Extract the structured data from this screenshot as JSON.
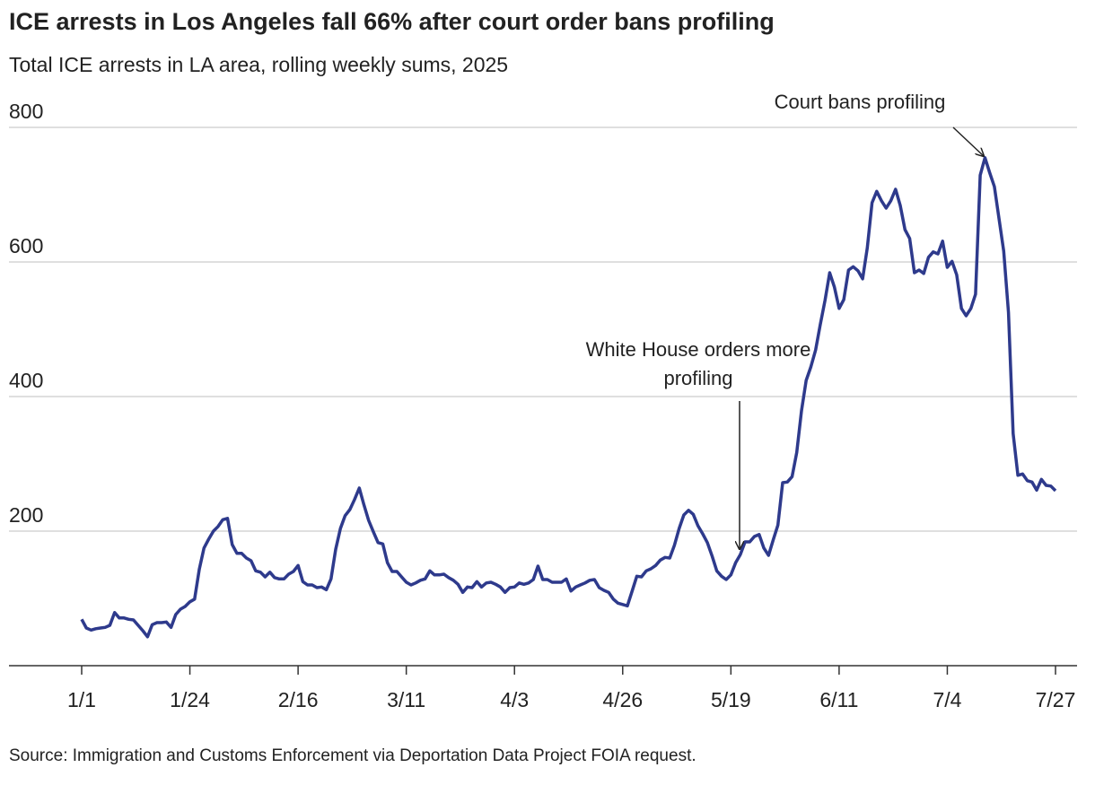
{
  "chart_data": {
    "type": "line",
    "title": "ICE arrests in Los Angeles fall 66% after court order bans profiling",
    "subtitle": "Total ICE arrests in LA area, rolling weekly sums, 2025",
    "source": "Source: Immigration and Customs Enforcement via Deportation Data Project FOIA request.",
    "annotations": [
      {
        "lines": [
          "Court bans profiling"
        ]
      },
      {
        "lines": [
          "White House orders more",
          "profiling"
        ]
      }
    ],
    "color": "#2e3a8c",
    "ylim": [
      0,
      800
    ],
    "yticks": [
      200,
      400,
      600,
      800
    ],
    "grid": true,
    "xticks": [
      "1/1",
      "1/24",
      "2/16",
      "3/11",
      "4/3",
      "4/26",
      "5/19",
      "6/11",
      "7/4",
      "7/27"
    ],
    "x": [
      "1/1",
      "1/2",
      "1/3",
      "1/4",
      "1/5",
      "1/6",
      "1/7",
      "1/8",
      "1/9",
      "1/10",
      "1/11",
      "1/12",
      "1/13",
      "1/14",
      "1/15",
      "1/16",
      "1/17",
      "1/18",
      "1/19",
      "1/20",
      "1/21",
      "1/22",
      "1/23",
      "1/24",
      "1/25",
      "1/26",
      "1/27",
      "1/28",
      "1/29",
      "1/30",
      "1/31",
      "2/1",
      "2/2",
      "2/3",
      "2/4",
      "2/5",
      "2/6",
      "2/7",
      "2/8",
      "2/9",
      "2/10",
      "2/11",
      "2/12",
      "2/13",
      "2/14",
      "2/15",
      "2/16",
      "2/17",
      "2/18",
      "2/19",
      "2/20",
      "2/21",
      "2/22",
      "2/23",
      "2/24",
      "2/25",
      "2/26",
      "2/27",
      "2/28",
      "3/1",
      "3/2",
      "3/3",
      "3/4",
      "3/5",
      "3/6",
      "3/7",
      "3/8",
      "3/9",
      "3/10",
      "3/11",
      "3/12",
      "3/13",
      "3/14",
      "3/15",
      "3/16",
      "3/17",
      "3/18",
      "3/19",
      "3/20",
      "3/21",
      "3/22",
      "3/23",
      "3/24",
      "3/25",
      "3/26",
      "3/27",
      "3/28",
      "3/29",
      "3/30",
      "3/31",
      "4/1",
      "4/2",
      "4/3",
      "4/4",
      "4/5",
      "4/6",
      "4/7",
      "4/8",
      "4/9",
      "4/10",
      "4/11",
      "4/12",
      "4/13",
      "4/14",
      "4/15",
      "4/16",
      "4/17",
      "4/18",
      "4/19",
      "4/20",
      "4/21",
      "4/22",
      "4/23",
      "4/24",
      "4/25",
      "4/26",
      "4/27",
      "4/28",
      "4/29",
      "4/30",
      "5/1",
      "5/2",
      "5/3",
      "5/4",
      "5/5",
      "5/6",
      "5/7",
      "5/8",
      "5/9",
      "5/10",
      "5/11",
      "5/12",
      "5/13",
      "5/14",
      "5/15",
      "5/16",
      "5/17",
      "5/18",
      "5/19",
      "5/20",
      "5/21",
      "5/22",
      "5/23",
      "5/24",
      "5/25",
      "5/26",
      "5/27",
      "5/28",
      "5/29",
      "5/30",
      "5/31",
      "6/1",
      "6/2",
      "6/3",
      "6/4",
      "6/5",
      "6/6",
      "6/7",
      "6/8",
      "6/9",
      "6/10",
      "6/11",
      "6/12",
      "6/13",
      "6/14",
      "6/15",
      "6/16",
      "6/17",
      "6/18",
      "6/19",
      "6/20",
      "6/21",
      "6/22",
      "6/23",
      "6/24",
      "6/25",
      "6/26",
      "6/27",
      "6/28",
      "6/29",
      "6/30",
      "7/1",
      "7/2",
      "7/3",
      "7/4",
      "7/5",
      "7/6",
      "7/7",
      "7/8",
      "7/9",
      "7/10",
      "7/11",
      "7/12",
      "7/13",
      "7/14",
      "7/15",
      "7/16",
      "7/17",
      "7/18",
      "7/19",
      "7/20",
      "7/21",
      "7/22",
      "7/23",
      "7/24",
      "7/25",
      "7/26",
      "7/27"
    ],
    "values": [
      69,
      56,
      53,
      55,
      56,
      57,
      60,
      79,
      71,
      71,
      69,
      68,
      60,
      52,
      43,
      61,
      64,
      64,
      65,
      57,
      76,
      84,
      88,
      95,
      99,
      143,
      175,
      188,
      200,
      207,
      217,
      219,
      180,
      167,
      167,
      160,
      156,
      141,
      139,
      132,
      139,
      131,
      129,
      129,
      136,
      140,
      149,
      125,
      120,
      120,
      116,
      117,
      113,
      129,
      173,
      204,
      223,
      232,
      247,
      264,
      239,
      216,
      199,
      183,
      181,
      153,
      140,
      140,
      132,
      124,
      120,
      123,
      127,
      129,
      141,
      135,
      135,
      136,
      131,
      127,
      121,
      109,
      117,
      116,
      125,
      117,
      123,
      124,
      121,
      117,
      109,
      116,
      117,
      123,
      121,
      123,
      128,
      148,
      128,
      128,
      124,
      124,
      124,
      129,
      111,
      117,
      120,
      123,
      127,
      128,
      116,
      112,
      109,
      99,
      93,
      91,
      89,
      111,
      133,
      132,
      141,
      144,
      149,
      157,
      161,
      160,
      179,
      204,
      224,
      231,
      225,
      208,
      196,
      183,
      163,
      141,
      133,
      128,
      135,
      153,
      165,
      184,
      184,
      192,
      195,
      175,
      164,
      187,
      209,
      272,
      273,
      281,
      317,
      379,
      424,
      444,
      469,
      507,
      543,
      584,
      563,
      531,
      544,
      588,
      593,
      587,
      575,
      621,
      688,
      705,
      691,
      680,
      691,
      708,
      684,
      648,
      635,
      584,
      588,
      583,
      607,
      615,
      612,
      631,
      592,
      601,
      581,
      531,
      520,
      531,
      552,
      729,
      755,
      733,
      712,
      664,
      616,
      525,
      345,
      283,
      285,
      275,
      273,
      261,
      277,
      268,
      267,
      260
    ]
  }
}
